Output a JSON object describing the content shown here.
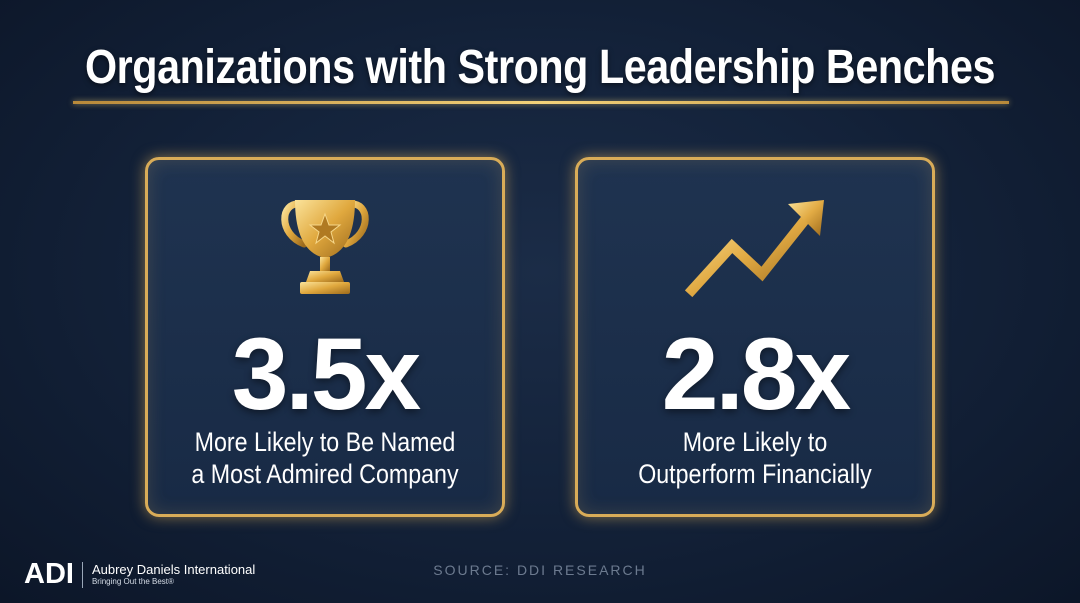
{
  "title": "Organizations with Strong Leadership Benches",
  "cards": [
    {
      "icon": "trophy-icon",
      "stat": "3.5x",
      "desc_line1": "More Likely to Be Named",
      "desc_line2": "a Most Admired Company"
    },
    {
      "icon": "trend-arrow-icon",
      "stat": "2.8x",
      "desc_line1": "More Likely to",
      "desc_line2": "Outperform Financially"
    }
  ],
  "source": "SOURCE: DDI RESEARCH",
  "logo": {
    "mark": "ADI",
    "name": "Aubrey Daniels International",
    "tagline": "Bringing Out the Best®"
  },
  "colors": {
    "background": "#14233b",
    "gold": "#d9ac58",
    "text": "#ffffff"
  }
}
